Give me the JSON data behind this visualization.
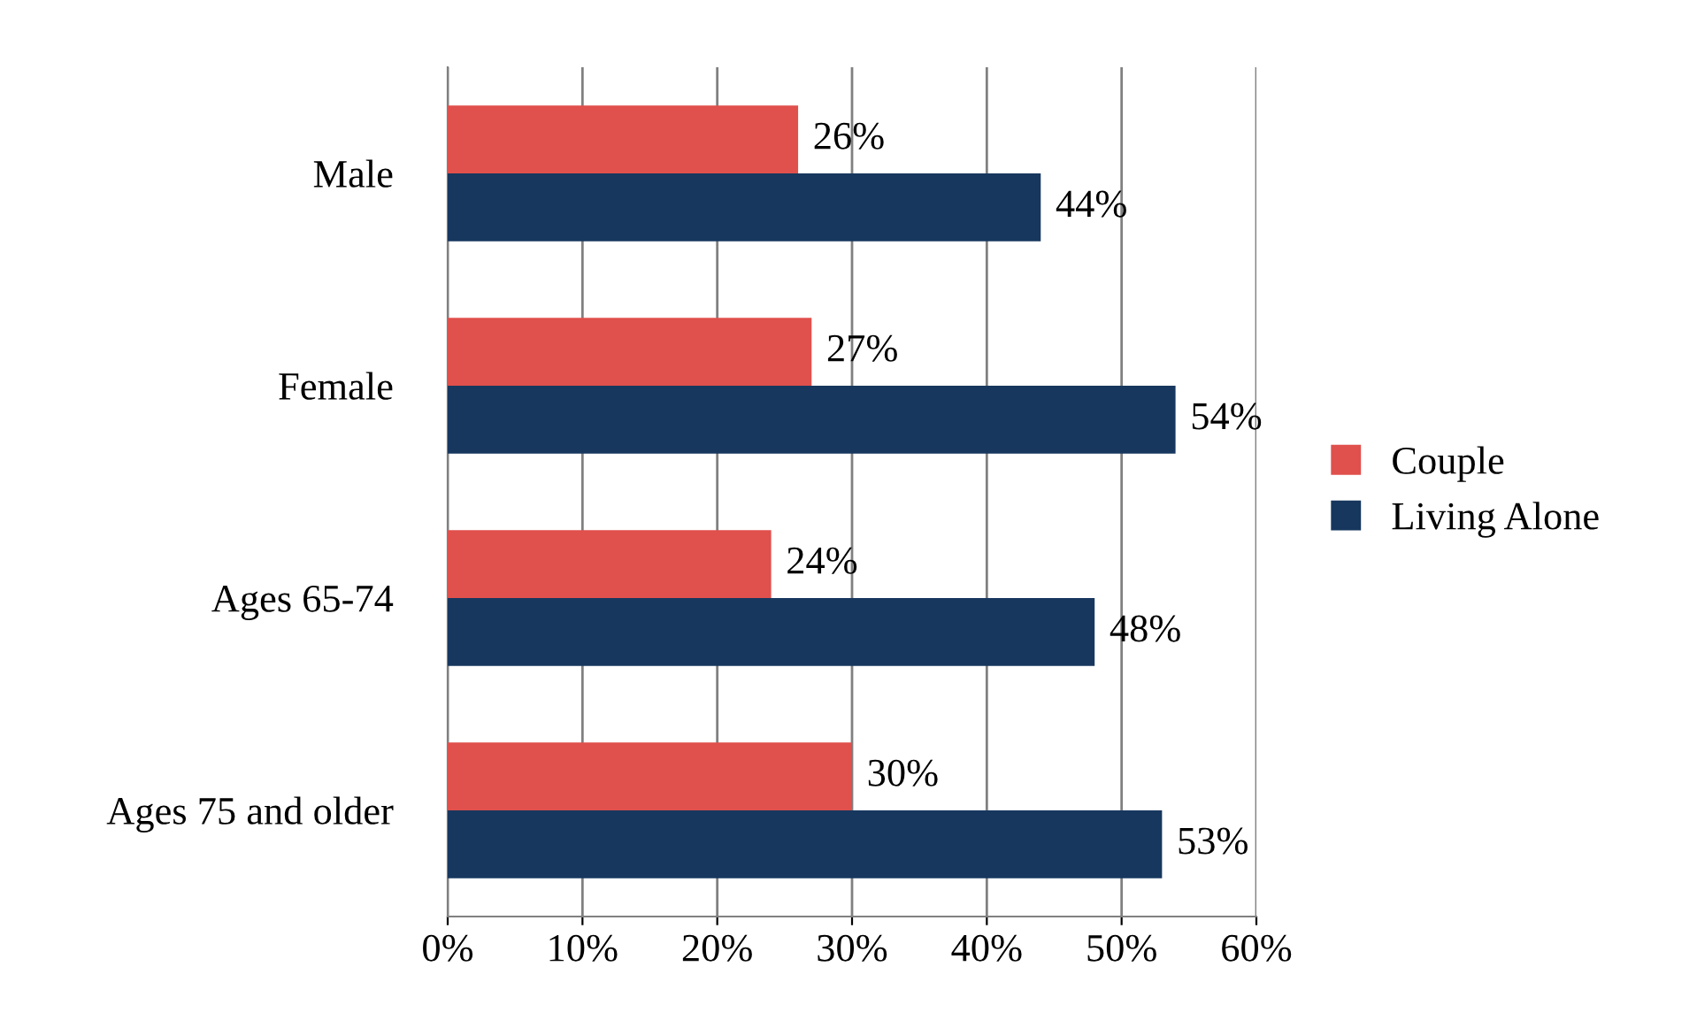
{
  "chart_data": {
    "type": "bar",
    "orientation": "horizontal",
    "categories": [
      "Male",
      "Female",
      "Ages 65-74",
      "Ages 75 and older"
    ],
    "series": [
      {
        "name": "Couple",
        "color": "#e0504c",
        "values": [
          26,
          27,
          24,
          30
        ],
        "value_labels": [
          "26%",
          "27%",
          "24%",
          "30%"
        ]
      },
      {
        "name": "Living Alone",
        "color": "#17375e",
        "values": [
          44,
          54,
          48,
          53
        ],
        "value_labels": [
          "44%",
          "54%",
          "48%",
          "53%"
        ]
      }
    ],
    "xlim": [
      0,
      60
    ],
    "xticks": [
      {
        "value": 0,
        "label": "0%"
      },
      {
        "value": 10,
        "label": "10%"
      },
      {
        "value": 20,
        "label": "20%"
      },
      {
        "value": 30,
        "label": "30%"
      },
      {
        "value": 40,
        "label": "40%"
      },
      {
        "value": 50,
        "label": "50%"
      },
      {
        "value": 60,
        "label": "60%"
      }
    ],
    "grid": "x",
    "legend": "right"
  }
}
